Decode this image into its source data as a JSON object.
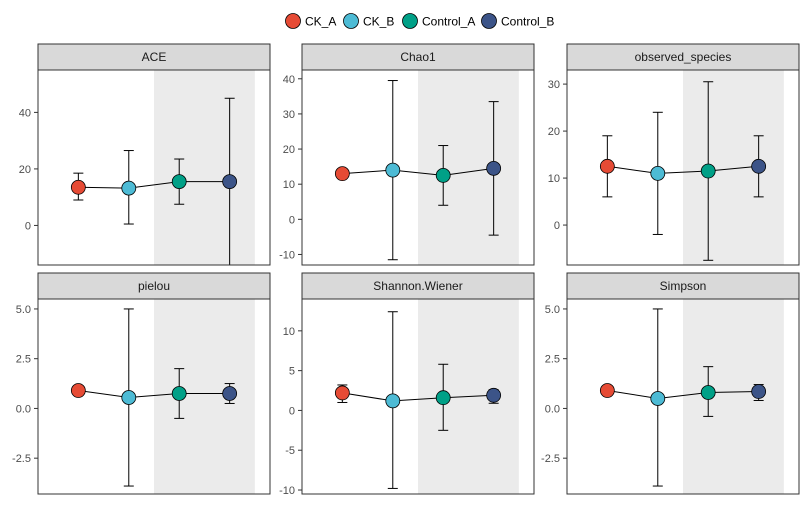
{
  "chart_data": {
    "type": "scatter",
    "legend": {
      "position": "top",
      "entries": [
        {
          "label": "CK_A",
          "color": "#E64B35"
        },
        {
          "label": "CK_B",
          "color": "#4DBBD5"
        },
        {
          "label": "Control_A",
          "color": "#00A087"
        },
        {
          "label": "Control_B",
          "color": "#3C5488"
        }
      ]
    },
    "groups": [
      "CK_A",
      "CK_B",
      "Control_A",
      "Control_B"
    ],
    "highlight_groups": [
      "Control_A",
      "Control_B"
    ],
    "panels": [
      {
        "title": "ACE",
        "ylim": [
          -14,
          55
        ],
        "ticks": [
          0,
          20,
          40
        ],
        "tick_labels": [
          "0",
          "20",
          "40"
        ],
        "points": [
          {
            "group": "CK_A",
            "mean": 13.5,
            "low": 9,
            "high": 18.5
          },
          {
            "group": "CK_B",
            "mean": 13.2,
            "low": 0.5,
            "high": 26.5
          },
          {
            "group": "Control_A",
            "mean": 15.5,
            "low": 7.5,
            "high": 23.5
          },
          {
            "group": "Control_B",
            "mean": 15.5,
            "low": -14,
            "high": 45
          }
        ]
      },
      {
        "title": "Chao1",
        "ylim": [
          -13,
          42.5
        ],
        "ticks": [
          -10,
          0,
          10,
          20,
          30,
          40
        ],
        "tick_labels": [
          "-10",
          "0",
          "10",
          "20",
          "30",
          "40"
        ],
        "points": [
          {
            "group": "CK_A",
            "mean": 13,
            "low": 13,
            "high": 13
          },
          {
            "group": "CK_B",
            "mean": 14,
            "low": -11.5,
            "high": 39.5
          },
          {
            "group": "Control_A",
            "mean": 12.5,
            "low": 4,
            "high": 21
          },
          {
            "group": "Control_B",
            "mean": 14.5,
            "low": -4.5,
            "high": 33.5
          }
        ]
      },
      {
        "title": "observed_species",
        "ylim": [
          -8.5,
          33
        ],
        "ticks": [
          0,
          10,
          20,
          30
        ],
        "tick_labels": [
          "0",
          "10",
          "20",
          "30"
        ],
        "points": [
          {
            "group": "CK_A",
            "mean": 12.5,
            "low": 6,
            "high": 19
          },
          {
            "group": "CK_B",
            "mean": 11,
            "low": -2,
            "high": 24
          },
          {
            "group": "Control_A",
            "mean": 11.5,
            "low": -7.5,
            "high": 30.5
          },
          {
            "group": "Control_B",
            "mean": 12.5,
            "low": 6,
            "high": 19
          }
        ]
      },
      {
        "title": "pielou",
        "ylim": [
          -4.3,
          5.5
        ],
        "ticks": [
          -2.5,
          0,
          2.5,
          5
        ],
        "tick_labels": [
          "-2.5",
          "0.0",
          "2.5",
          "5.0"
        ],
        "points": [
          {
            "group": "CK_A",
            "mean": 0.9,
            "low": 0.9,
            "high": 0.9
          },
          {
            "group": "CK_B",
            "mean": 0.55,
            "low": -3.9,
            "high": 5.0
          },
          {
            "group": "Control_A",
            "mean": 0.75,
            "low": -0.5,
            "high": 2.0
          },
          {
            "group": "Control_B",
            "mean": 0.75,
            "low": 0.25,
            "high": 1.25
          }
        ]
      },
      {
        "title": "Shannon.Wiener",
        "ylim": [
          -10.5,
          14
        ],
        "ticks": [
          -10,
          -5,
          0,
          5,
          10
        ],
        "tick_labels": [
          "-10",
          "-5",
          "0",
          "5",
          "10"
        ],
        "points": [
          {
            "group": "CK_A",
            "mean": 2.2,
            "low": 1,
            "high": 3.2
          },
          {
            "group": "CK_B",
            "mean": 1.2,
            "low": -9.8,
            "high": 12.4
          },
          {
            "group": "Control_A",
            "mean": 1.6,
            "low": -2.5,
            "high": 5.8
          },
          {
            "group": "Control_B",
            "mean": 1.9,
            "low": 0.9,
            "high": 2.6
          }
        ]
      },
      {
        "title": "Simpson",
        "ylim": [
          -4.3,
          5.5
        ],
        "ticks": [
          -2.5,
          0,
          2.5,
          5
        ],
        "tick_labels": [
          "-2.5",
          "0.0",
          "2.5",
          "5.0"
        ],
        "points": [
          {
            "group": "CK_A",
            "mean": 0.9,
            "low": 0.9,
            "high": 0.9
          },
          {
            "group": "CK_B",
            "mean": 0.5,
            "low": -3.9,
            "high": 5.0
          },
          {
            "group": "Control_A",
            "mean": 0.8,
            "low": -0.4,
            "high": 2.1
          },
          {
            "group": "Control_B",
            "mean": 0.85,
            "low": 0.4,
            "high": 1.2
          }
        ]
      }
    ]
  }
}
